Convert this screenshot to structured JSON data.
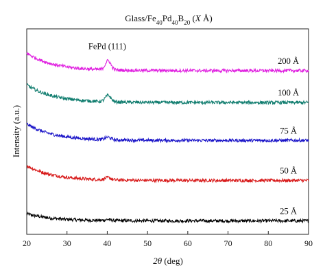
{
  "chart_data": {
    "type": "line",
    "title": {
      "prefix": "Glass/Fe",
      "sub1": "40",
      "mid1": "Pd",
      "sub2": "40",
      "mid2": "B",
      "sub3": "20",
      "open": " (",
      "var": "X",
      "unit": " Å",
      "close": ")"
    },
    "xlabel": {
      "var": "2θ",
      "rest": " (deg)"
    },
    "ylabel": "Intensity (a.u.)",
    "xlim": [
      20,
      90
    ],
    "xticks": [
      20,
      30,
      40,
      50,
      60,
      70,
      80,
      90
    ],
    "y_tick_labels": "none",
    "grid": false,
    "annotations": [
      {
        "text": "FePd (111)",
        "x": 40
      }
    ],
    "peak_position": 40.2,
    "series": [
      {
        "name": "25 Å",
        "label_x": 85,
        "color": "#000000",
        "baseline": 0.18,
        "start": 0.38,
        "peak": 0.03
      },
      {
        "name": "50 Å",
        "label_x": 85,
        "color": "#d81b1b",
        "baseline": 1.32,
        "start": 1.74,
        "peak": 0.06
      },
      {
        "name": "75 Å",
        "label_x": 85,
        "color": "#1a14c8",
        "baseline": 2.45,
        "start": 2.92,
        "peak": 0.07
      },
      {
        "name": "100 Å",
        "label_x": 85,
        "color": "#0f7c6e",
        "baseline": 3.52,
        "start": 4.02,
        "peak": 0.18
      },
      {
        "name": "200 Å",
        "label_x": 85,
        "color": "#e021e0",
        "baseline": 4.42,
        "start": 4.92,
        "peak": 0.26
      }
    ]
  }
}
